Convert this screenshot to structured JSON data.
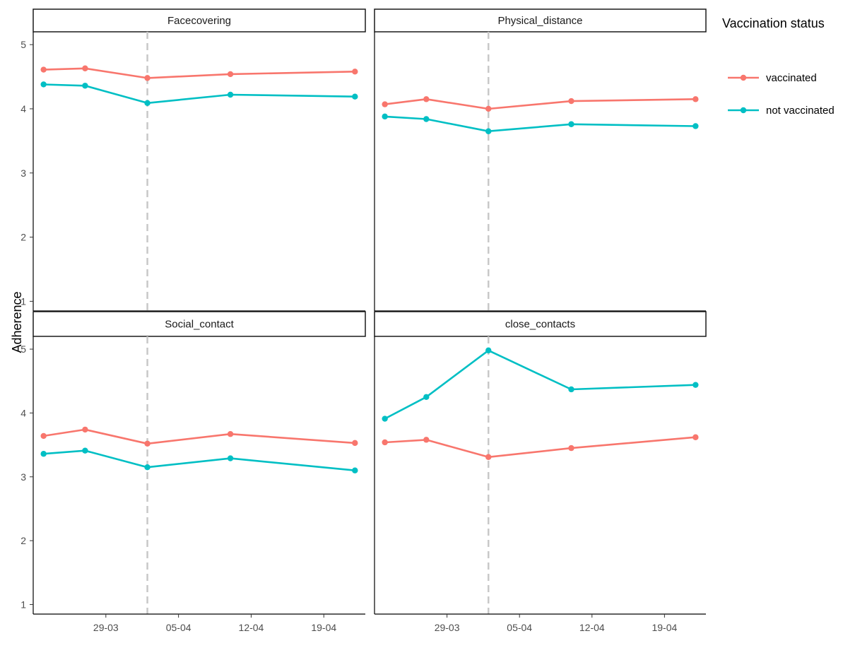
{
  "chart_data": {
    "type": "line",
    "ylabel": "Adherence",
    "xlabel": "",
    "ylim": [
      0.85,
      5.2
    ],
    "xlim": [
      "2021-03-22",
      "2021-04-23"
    ],
    "y_ticks": [
      1,
      2,
      3,
      4,
      5
    ],
    "x_ticks": [
      {
        "date": "2021-03-29",
        "label": "29-03"
      },
      {
        "date": "2021-04-05",
        "label": "05-04"
      },
      {
        "date": "2021-04-12",
        "label": "12-04"
      },
      {
        "date": "2021-04-19",
        "label": "19-04"
      }
    ],
    "reference_line_date": "2021-04-02",
    "grid": false,
    "legend": {
      "title": "Vaccination status",
      "position": "right",
      "items": [
        {
          "label": "vaccinated",
          "color": "#F8766D"
        },
        {
          "label": "not vaccinated",
          "color": "#00BFC4"
        }
      ]
    },
    "x": [
      "2021-03-23",
      "2021-03-27",
      "2021-04-02",
      "2021-04-10",
      "2021-04-22"
    ],
    "panels": [
      {
        "name": "Facecovering",
        "series": [
          {
            "name": "vaccinated",
            "color": "#F8766D",
            "values": [
              4.61,
              4.63,
              4.48,
              4.54,
              4.58
            ]
          },
          {
            "name": "not vaccinated",
            "color": "#00BFC4",
            "values": [
              4.38,
              4.36,
              4.09,
              4.22,
              4.19
            ]
          }
        ]
      },
      {
        "name": "Physical_distance",
        "series": [
          {
            "name": "vaccinated",
            "color": "#F8766D",
            "values": [
              4.07,
              4.15,
              4.0,
              4.12,
              4.15
            ]
          },
          {
            "name": "not vaccinated",
            "color": "#00BFC4",
            "values": [
              3.88,
              3.84,
              3.65,
              3.76,
              3.73
            ]
          }
        ]
      },
      {
        "name": "Social_contact",
        "series": [
          {
            "name": "vaccinated",
            "color": "#F8766D",
            "values": [
              3.64,
              3.74,
              3.52,
              3.67,
              3.53
            ]
          },
          {
            "name": "not vaccinated",
            "color": "#00BFC4",
            "values": [
              3.36,
              3.41,
              3.15,
              3.29,
              3.1
            ]
          }
        ]
      },
      {
        "name": "close_contacts",
        "series": [
          {
            "name": "vaccinated",
            "color": "#F8766D",
            "values": [
              3.54,
              3.58,
              3.31,
              3.45,
              3.62
            ]
          },
          {
            "name": "not vaccinated",
            "color": "#00BFC4",
            "values": [
              3.91,
              4.25,
              4.98,
              4.37,
              4.44
            ]
          }
        ]
      }
    ]
  }
}
